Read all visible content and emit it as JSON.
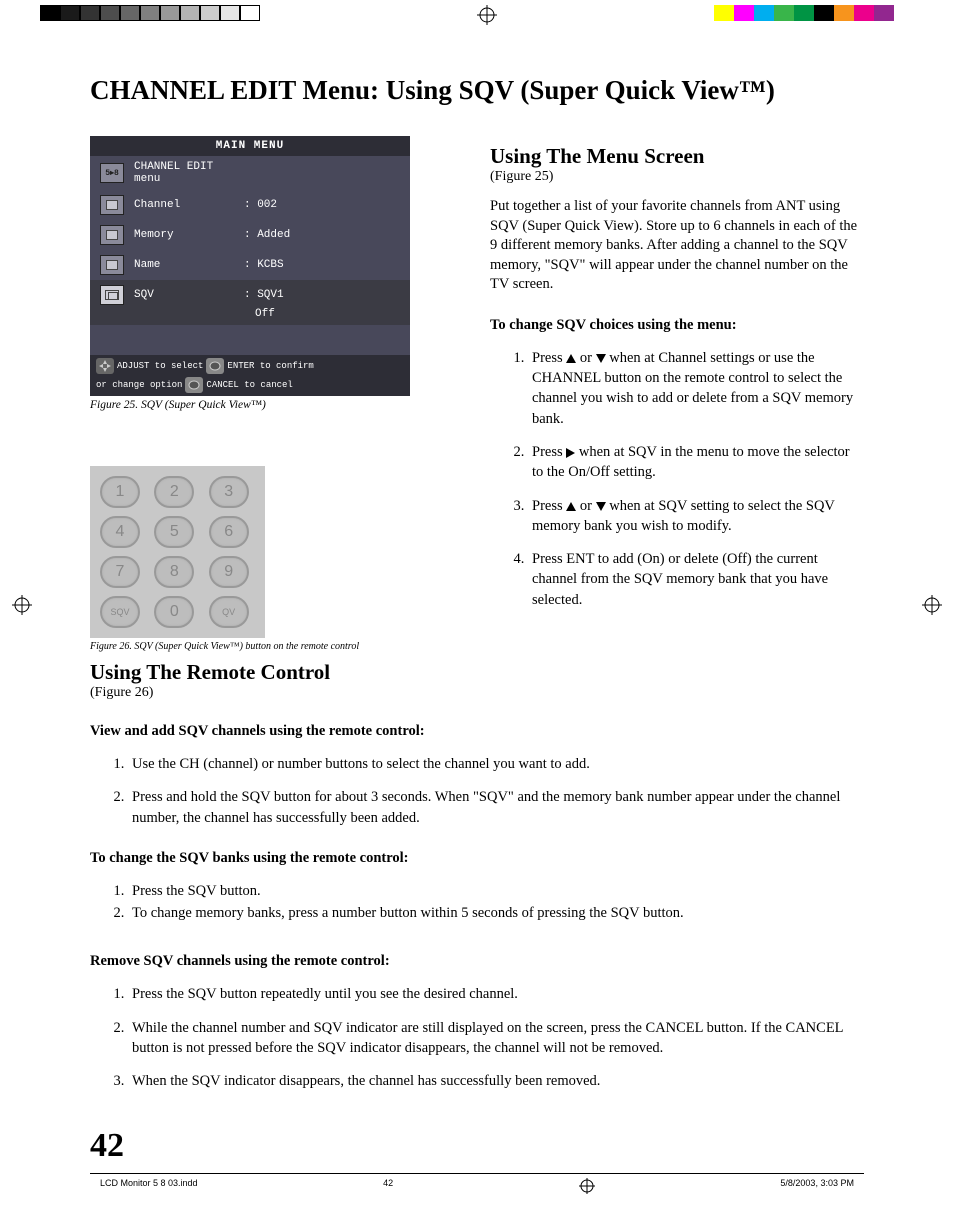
{
  "top_greys": [
    "#000000",
    "#1a1a1a",
    "#333333",
    "#4d4d4d",
    "#666666",
    "#808080",
    "#999999",
    "#b3b3b3",
    "#cccccc",
    "#e6e6e6",
    "#ffffff"
  ],
  "top_colors": [
    "#ffff00",
    "#ff00ff",
    "#00aeef",
    "#39b54a",
    "#009444",
    "#000000",
    "#f7941d",
    "#ec008c",
    "#92278f",
    "#ffffff"
  ],
  "title": "CHANNEL EDIT Menu: Using SQV (Super Quick View™)",
  "menu": {
    "header": "MAIN MENU",
    "section": "CHANNEL EDIT menu",
    "rows": [
      {
        "label": "Channel",
        "value": ": 002"
      },
      {
        "label": "Memory",
        "value": ": Added"
      },
      {
        "label": "Name",
        "value": ": KCBS"
      },
      {
        "label": "SQV",
        "value": ": SQV1",
        "sub": "Off",
        "selected": true
      }
    ],
    "footer": {
      "adjust": "ADJUST to select",
      "change": "or change option",
      "enter": "ENTER to confirm",
      "cancel": "CANCEL to cancel"
    }
  },
  "fig25_caption": "Figure 25. SQV (Super Quick View™)",
  "keypad": [
    "1",
    "2",
    "3",
    "4",
    "5",
    "6",
    "7",
    "8",
    "9",
    "SQV",
    "0",
    "QV"
  ],
  "fig26_caption": "Figure 26. SQV (Super Quick View™) button on the remote control",
  "remote_heading": "Using The Remote Control",
  "remote_figref": "(Figure 26)",
  "remote_sub1": "View and add SQV channels using the remote control:",
  "remote_list1": [
    "Use the CH (channel) or number buttons to select the channel you want to add.",
    "Press and hold the SQV button for about 3 seconds.  When \"SQV\" and the memory bank number appear under the channel number, the channel has successfully been added."
  ],
  "remote_sub2": "To change the SQV banks using the remote control:",
  "remote_list2": [
    " Press the SQV button.",
    "To change memory banks, press a number button within 5 seconds of pressing the SQV button."
  ],
  "remote_sub3": "Remove SQV channels using the remote control:",
  "remote_list3": [
    "Press the SQV button repeatedly until you see the desired channel.",
    "While the channel number and SQV indicator are still displayed on the screen, press the CANCEL button.  If the CANCEL button is not pressed before the SQV indicator disappears, the channel will not be removed.",
    "When the SQV indicator disappears, the channel has successfully been removed."
  ],
  "screen_heading": "Using The Menu Screen",
  "screen_figref": "(Figure 25)",
  "screen_para": "Put together a list of your favorite channels from ANT using SQV (Super Quick View).  Store up to 6 channels in each of the 9 different memory banks.  After adding a channel to the SQV memory, \"SQV\" will appear under the channel number on the TV screen.",
  "screen_sub": "To change SQV choices using the menu:",
  "screen_step1a": " Press ",
  "screen_step1b": " or ",
  "screen_step1c": " when at Channel settings or use the CHANNEL button on the remote control to select the channel you wish to add or delete from a SQV memory bank.",
  "screen_step2a": "Press ",
  "screen_step2b": " when at SQV in the menu to move the selector to the On/Off setting.",
  "screen_step3a": " Press ",
  "screen_step3b": " or ",
  "screen_step3c": " when at SQV setting to select the SQV memory bank you wish to modify.",
  "screen_step4": " Press ENT to add (On) or delete (Off) the current channel from the SQV memory bank that you have selected.",
  "page_number": "42",
  "footer": {
    "file": "LCD Monitor 5 8 03.indd",
    "page": "42",
    "date": "5/8/2003, 3:03 PM"
  }
}
